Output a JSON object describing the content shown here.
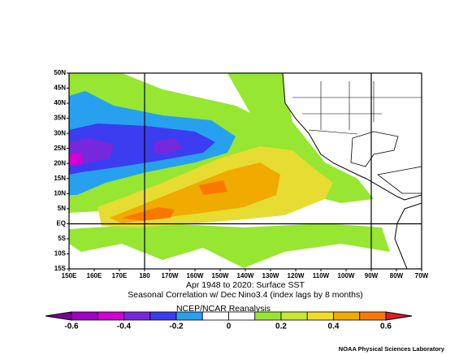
{
  "map": {
    "lat_labels": [
      "50N",
      "45N",
      "40N",
      "35N",
      "30N",
      "25N",
      "20N",
      "15N",
      "10N",
      "5N",
      "EQ",
      "5S",
      "10S",
      "15S"
    ],
    "lon_labels": [
      "150E",
      "160E",
      "170E",
      "180",
      "170W",
      "160W",
      "150W",
      "140W",
      "130W",
      "120W",
      "110W",
      "100W",
      "90W",
      "80W",
      "70W"
    ]
  },
  "caption": {
    "line1": "Apr 1948 to 2020: Surface SST",
    "line2": "Seasonal Correlation w/ Dec Nino3.4 (index lags by 8 months)",
    "line3": "NCEP/NCAR Reanalysis"
  },
  "colorbar": {
    "colors": [
      "#780096",
      "#a000c8",
      "#d200d2",
      "#7828dc",
      "#3c3cf0",
      "#28a0f0",
      "#ffffff",
      "#ffffff",
      "#96e632",
      "#c8e632",
      "#f0dc28",
      "#f0aa00",
      "#fa7800",
      "#dc1e1e"
    ],
    "labels": [
      "-0.6",
      "-0.4",
      "-0.2",
      "0",
      "0.2",
      "0.4",
      "0.6"
    ]
  },
  "credit": "NOAA Physical Sciences Laboratory"
}
